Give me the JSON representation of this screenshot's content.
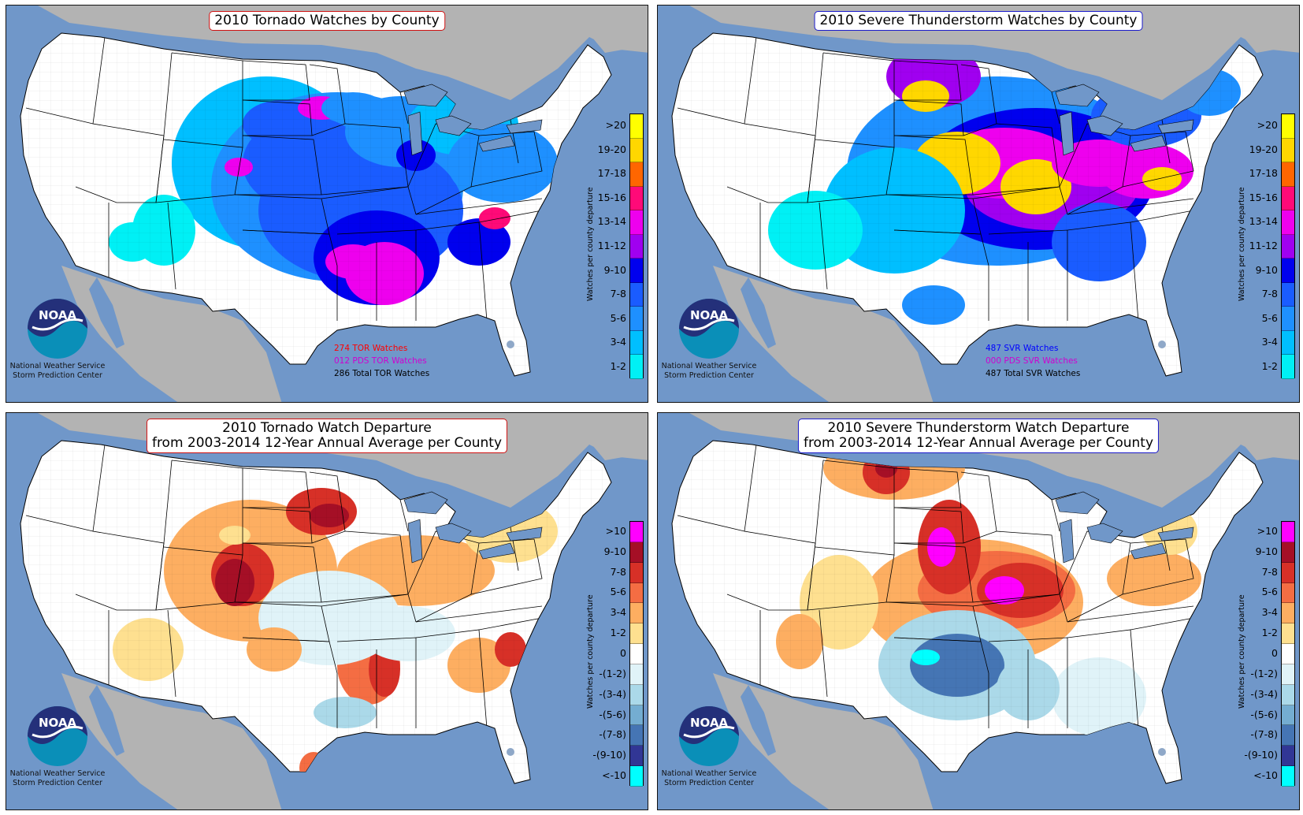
{
  "panels": [
    {
      "id": "tor-watches",
      "title_lines": [
        "2010 Tornado Watches by County"
      ],
      "title_border": "red",
      "legend_axis": "Watches per county departure",
      "legend": [
        {
          "label": ">20",
          "color": "#ffff00"
        },
        {
          "label": "19-20",
          "color": "#ffd700"
        },
        {
          "label": "17-18",
          "color": "#ff6600"
        },
        {
          "label": "15-16",
          "color": "#ff0a78"
        },
        {
          "label": "13-14",
          "color": "#ee00ee"
        },
        {
          "label": "11-12",
          "color": "#a000f0"
        },
        {
          "label": "9-10",
          "color": "#0000ee"
        },
        {
          "label": "7-8",
          "color": "#1a5cff"
        },
        {
          "label": "5-6",
          "color": "#1e90ff"
        },
        {
          "label": "3-4",
          "color": "#00bfff"
        },
        {
          "label": "1-2",
          "color": "#00f0f5"
        }
      ],
      "stats": [
        {
          "text": "274 TOR Watches",
          "color": "#ff0000"
        },
        {
          "text": "012 PDS TOR Watches",
          "color": "#d000d0"
        },
        {
          "text": "286 Total TOR Watches",
          "color": "#000000"
        }
      ]
    },
    {
      "id": "svr-watches",
      "title_lines": [
        "2010 Severe Thunderstorm Watches by County"
      ],
      "title_border": "blue",
      "legend_axis": "Watches per county departure",
      "legend": [
        {
          "label": ">20",
          "color": "#ffff00"
        },
        {
          "label": "19-20",
          "color": "#ffd700"
        },
        {
          "label": "17-18",
          "color": "#ff6600"
        },
        {
          "label": "15-16",
          "color": "#ff0a78"
        },
        {
          "label": "13-14",
          "color": "#ee00ee"
        },
        {
          "label": "11-12",
          "color": "#a000f0"
        },
        {
          "label": "9-10",
          "color": "#0000ee"
        },
        {
          "label": "7-8",
          "color": "#1a5cff"
        },
        {
          "label": "5-6",
          "color": "#1e90ff"
        },
        {
          "label": "3-4",
          "color": "#00bfff"
        },
        {
          "label": "1-2",
          "color": "#00f0f5"
        }
      ],
      "stats": [
        {
          "text": "487 SVR Watches",
          "color": "#0000ff"
        },
        {
          "text": "000 PDS SVR Watches",
          "color": "#d000d0"
        },
        {
          "text": "487 Total SVR Watches",
          "color": "#000000"
        }
      ]
    },
    {
      "id": "tor-departure",
      "title_lines": [
        "2010 Tornado Watch Departure",
        "from 2003-2014 12-Year Annual Average per County"
      ],
      "title_border": "red",
      "legend_axis": "Watches per county departure",
      "legend": [
        {
          "label": ">10",
          "color": "#ff00ff"
        },
        {
          "label": "9-10",
          "color": "#a50f26"
        },
        {
          "label": "7-8",
          "color": "#d73027"
        },
        {
          "label": "5-6",
          "color": "#f46d43"
        },
        {
          "label": "3-4",
          "color": "#fdae61"
        },
        {
          "label": "1-2",
          "color": "#fee090"
        },
        {
          "label": "0",
          "color": "#ffffff"
        },
        {
          "label": "-(1-2)",
          "color": "#e0f3f8"
        },
        {
          "label": "-(3-4)",
          "color": "#abd9e9"
        },
        {
          "label": "-(5-6)",
          "color": "#74add1"
        },
        {
          "label": "-(7-8)",
          "color": "#4575b4"
        },
        {
          "label": "-(9-10)",
          "color": "#313695"
        },
        {
          "label": "<-10",
          "color": "#00ffff"
        }
      ],
      "stats": []
    },
    {
      "id": "svr-departure",
      "title_lines": [
        "2010 Severe Thunderstorm Watch Departure",
        "from 2003-2014 12-Year Annual Average per County"
      ],
      "title_border": "blue",
      "legend_axis": "Watches per county departure",
      "legend": [
        {
          "label": ">10",
          "color": "#ff00ff"
        },
        {
          "label": "9-10",
          "color": "#a50f26"
        },
        {
          "label": "7-8",
          "color": "#d73027"
        },
        {
          "label": "5-6",
          "color": "#f46d43"
        },
        {
          "label": "3-4",
          "color": "#fdae61"
        },
        {
          "label": "1-2",
          "color": "#fee090"
        },
        {
          "label": "0",
          "color": "#ffffff"
        },
        {
          "label": "-(1-2)",
          "color": "#e0f3f8"
        },
        {
          "label": "-(3-4)",
          "color": "#abd9e9"
        },
        {
          "label": "-(5-6)",
          "color": "#74add1"
        },
        {
          "label": "-(7-8)",
          "color": "#4575b4"
        },
        {
          "label": "-(9-10)",
          "color": "#313695"
        },
        {
          "label": "<-10",
          "color": "#00ffff"
        }
      ],
      "stats": []
    }
  ],
  "credit_lines": [
    "National Weather Service",
    "Storm Prediction Center"
  ],
  "logo_text": "NOAA",
  "colors": {
    "ocean": "#7097c9",
    "land_outside": "#b3b3b3",
    "land_us": "#ffffff"
  }
}
